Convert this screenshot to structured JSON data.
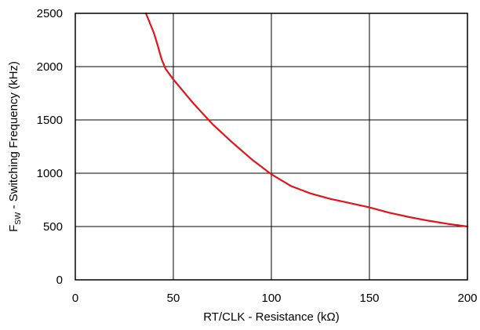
{
  "chart_data": {
    "type": "line",
    "title": "",
    "xlabel": "RT/CLK - Resistance (kΩ)",
    "ylabel": {
      "prefix": "F",
      "subscript": "SW",
      "suffix": " - Switching Frequency (kHz)"
    },
    "xlim": [
      0,
      200
    ],
    "ylim": [
      0,
      2500
    ],
    "xticks": [
      0,
      50,
      100,
      150,
      200
    ],
    "yticks": [
      0,
      500,
      1000,
      1500,
      2000,
      2500
    ],
    "grid": true,
    "legend": "none",
    "series": [
      {
        "color": "#e0141b",
        "x": [
          36,
          40,
          42,
          44,
          46,
          50,
          55,
          60,
          70,
          80,
          90,
          100,
          110,
          120,
          130,
          140,
          150,
          160,
          170,
          180,
          190,
          200
        ],
        "y": [
          2500,
          2320,
          2200,
          2070,
          1980,
          1880,
          1770,
          1660,
          1460,
          1290,
          1130,
          990,
          880,
          810,
          760,
          720,
          680,
          630,
          590,
          555,
          525,
          500
        ]
      }
    ]
  }
}
